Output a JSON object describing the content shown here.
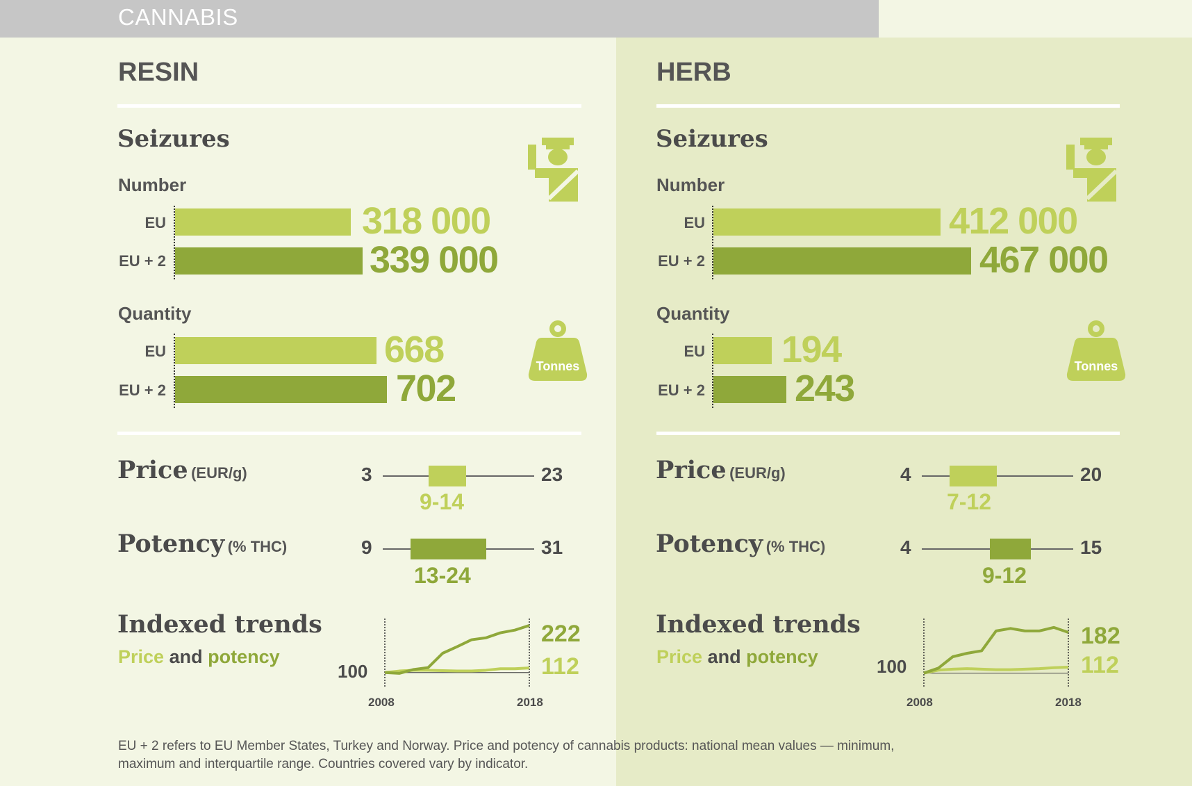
{
  "header": {
    "title": "CANNABIS"
  },
  "resin": {
    "title": "RESIN",
    "seizures_title": "Seizures",
    "number_label": "Number",
    "quantity_label": "Quantity",
    "row_eu": "EU",
    "row_eu2": "EU + 2",
    "number_eu": "318 000",
    "number_eu2": "339 000",
    "quantity_eu": "668",
    "quantity_eu2": "702",
    "tonnes": "Tonnes",
    "price_title": "Price",
    "price_unit": "(EUR/g)",
    "price_min": "3",
    "price_max": "23",
    "price_iqr": "9-14",
    "potency_title": "Potency",
    "potency_unit": "(% THC)",
    "potency_min": "9",
    "potency_max": "31",
    "potency_iqr": "13-24",
    "trends_title": "Indexed trends",
    "trends_price": "Price",
    "trends_and": "and",
    "trends_potency": "potency",
    "trend_base": "100",
    "trend_potency_end": "222",
    "trend_price_end": "112",
    "year_start": "2008",
    "year_end": "2018"
  },
  "herb": {
    "title": "HERB",
    "seizures_title": "Seizures",
    "number_label": "Number",
    "quantity_label": "Quantity",
    "row_eu": "EU",
    "row_eu2": "EU + 2",
    "number_eu": "412 000",
    "number_eu2": "467 000",
    "quantity_eu": "194",
    "quantity_eu2": "243",
    "tonnes": "Tonnes",
    "price_title": "Price",
    "price_unit": "(EUR/g)",
    "price_min": "4",
    "price_max": "20",
    "price_iqr": "7-12",
    "potency_title": "Potency",
    "potency_unit": "(% THC)",
    "potency_min": "4",
    "potency_max": "15",
    "potency_iqr": "9-12",
    "trends_title": "Indexed trends",
    "trends_price": "Price",
    "trends_and": "and",
    "trends_potency": "potency",
    "trend_base": "100",
    "trend_potency_end": "182",
    "trend_price_end": "112",
    "year_start": "2008",
    "year_end": "2018"
  },
  "footnote": {
    "line1": "EU + 2 refers to EU Member States, Turkey and Norway. Price and potency of cannabis products: national mean values — minimum,",
    "line2": "maximum and interquartile range. Countries covered vary by indicator."
  },
  "colors": {
    "light_green": "#bfd05a",
    "dark_green": "#8fa83a",
    "resin_bg": "#f3f6e4",
    "herb_bg": "#e6ebc7"
  },
  "chart_data": [
    {
      "type": "bar",
      "panel": "resin",
      "metric": "Seizures number",
      "categories": [
        "EU",
        "EU + 2"
      ],
      "values": [
        318000,
        339000
      ]
    },
    {
      "type": "bar",
      "panel": "resin",
      "metric": "Seizures quantity",
      "unit": "Tonnes",
      "categories": [
        "EU",
        "EU + 2"
      ],
      "values": [
        668,
        702
      ]
    },
    {
      "type": "bar",
      "panel": "herb",
      "metric": "Seizures number",
      "categories": [
        "EU",
        "EU + 2"
      ],
      "values": [
        412000,
        467000
      ]
    },
    {
      "type": "bar",
      "panel": "herb",
      "metric": "Seizures quantity",
      "unit": "Tonnes",
      "categories": [
        "EU",
        "EU + 2"
      ],
      "values": [
        194,
        243
      ]
    },
    {
      "type": "range",
      "panel": "resin",
      "metric": "Price",
      "unit": "EUR/g",
      "min": 3,
      "max": 23,
      "iqr": [
        9,
        14
      ]
    },
    {
      "type": "range",
      "panel": "resin",
      "metric": "Potency",
      "unit": "% THC",
      "min": 9,
      "max": 31,
      "iqr": [
        13,
        24
      ]
    },
    {
      "type": "range",
      "panel": "herb",
      "metric": "Price",
      "unit": "EUR/g",
      "min": 4,
      "max": 20,
      "iqr": [
        7,
        12
      ]
    },
    {
      "type": "range",
      "panel": "herb",
      "metric": "Potency",
      "unit": "% THC",
      "min": 4,
      "max": 15,
      "iqr": [
        9,
        12
      ]
    },
    {
      "type": "line",
      "panel": "resin",
      "x": [
        2008,
        2009,
        2010,
        2011,
        2012,
        2013,
        2014,
        2015,
        2016,
        2017,
        2018
      ],
      "series": [
        {
          "name": "potency",
          "values": [
            100,
            98,
            108,
            113,
            150,
            167,
            185,
            190,
            203,
            210,
            222
          ]
        },
        {
          "name": "price",
          "values": [
            100,
            104,
            106,
            106,
            105,
            104,
            104,
            106,
            110,
            110,
            112
          ]
        }
      ],
      "ylim": [
        60,
        240
      ]
    },
    {
      "type": "line",
      "panel": "herb",
      "x": [
        2008,
        2009,
        2010,
        2011,
        2012,
        2013,
        2014,
        2015,
        2016,
        2017,
        2018
      ],
      "series": [
        {
          "name": "potency",
          "values": [
            100,
            110,
            133,
            140,
            145,
            185,
            190,
            185,
            185,
            192,
            182
          ]
        },
        {
          "name": "price",
          "values": [
            100,
            106,
            108,
            109,
            108,
            107,
            107,
            108,
            109,
            111,
            112
          ]
        }
      ],
      "ylim": [
        70,
        210
      ]
    }
  ]
}
